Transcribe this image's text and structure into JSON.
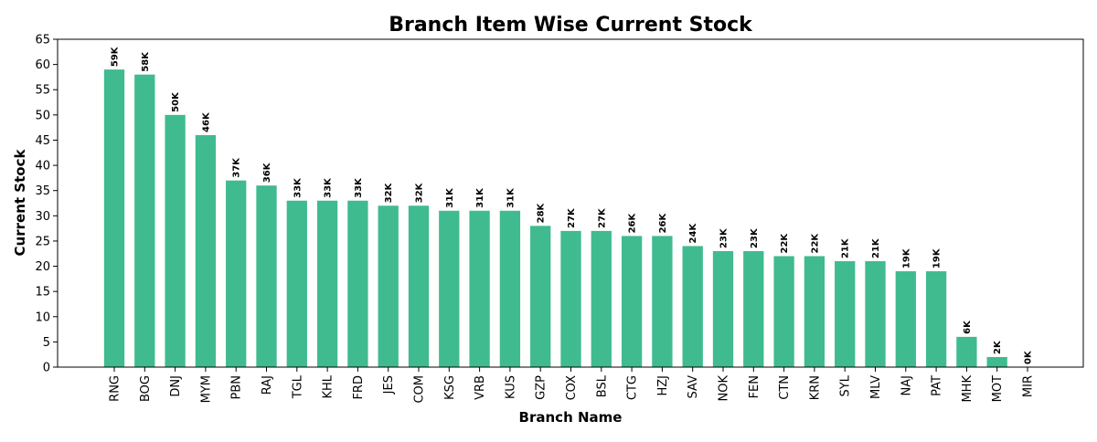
{
  "chart_data": {
    "type": "bar",
    "title": "Branch Item Wise Current Stock",
    "xlabel": "Branch Name",
    "ylabel": "Current Stock",
    "ylim": [
      0,
      65
    ],
    "yticks": [
      "0",
      "5",
      "10",
      "15",
      "20",
      "25",
      "30",
      "35",
      "40",
      "45",
      "50",
      "55",
      "60",
      "65"
    ],
    "grid": false,
    "legend": "none",
    "bar_color": "#3fbb8f",
    "categories": [
      "RNG",
      "BOG",
      "DNJ",
      "MYM",
      "PBN",
      "RAJ",
      "TGL",
      "KHL",
      "FRD",
      "JES",
      "COM",
      "KSG",
      "VRB",
      "KUS",
      "GZP",
      "COX",
      "BSL",
      "CTG",
      "HZJ",
      "SAV",
      "NOK",
      "FEN",
      "CTN",
      "KRN",
      "SYL",
      "MLV",
      "NAJ",
      "PAT",
      "MHK",
      "MOT",
      "MIR"
    ],
    "values": [
      59,
      58,
      50,
      46,
      37,
      36,
      33,
      33,
      33,
      32,
      32,
      31,
      31,
      31,
      28,
      27,
      27,
      26,
      26,
      24,
      23,
      23,
      22,
      22,
      21,
      21,
      19,
      19,
      6,
      2,
      0
    ],
    "data_labels": [
      "59K",
      "58K",
      "50K",
      "46K",
      "37K",
      "36K",
      "33K",
      "33K",
      "33K",
      "32K",
      "32K",
      "31K",
      "31K",
      "31K",
      "28K",
      "27K",
      "27K",
      "26K",
      "26K",
      "24K",
      "23K",
      "23K",
      "22K",
      "22K",
      "21K",
      "21K",
      "19K",
      "19K",
      "6K",
      "2K",
      "0K"
    ]
  }
}
